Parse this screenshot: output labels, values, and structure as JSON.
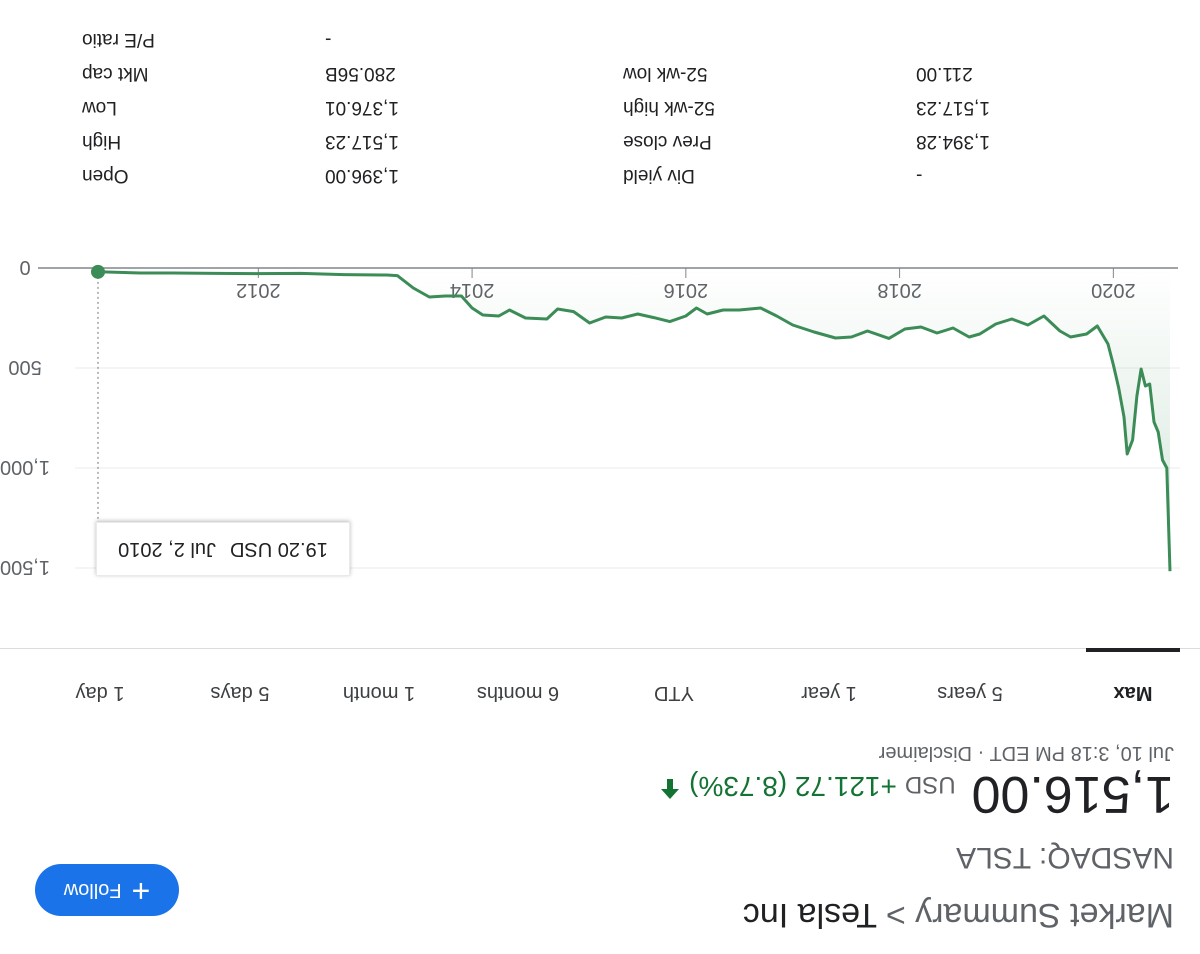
{
  "breadcrumb": {
    "parent": "Market Summary",
    "separator": ">",
    "current": "Tesla Inc"
  },
  "ticker": "NASDAQ: TSLA",
  "follow_button": {
    "icon": "plus-icon",
    "label": "Follow"
  },
  "quote": {
    "price": "1,516.00",
    "currency": "USD",
    "change": "+121.72 (8.73%)",
    "change_icon": "arrow-up-icon",
    "change_color": "#137333",
    "timestamp": "Jul 10, 3:18 PM EDT",
    "disclaimer": "Disclaimer"
  },
  "range_tabs": [
    {
      "label": "1 day"
    },
    {
      "label": "5 days"
    },
    {
      "label": "1 month"
    },
    {
      "label": "6 months"
    },
    {
      "label": "YTD"
    },
    {
      "label": "1 year"
    },
    {
      "label": "5 years"
    },
    {
      "label": "Max",
      "active": true
    }
  ],
  "tooltip": {
    "value": "19.20 USD",
    "date": "Jul 2, 2010"
  },
  "stats": {
    "left": [
      {
        "label": "Open",
        "value": "1,396.00"
      },
      {
        "label": "High",
        "value": "1,517.23"
      },
      {
        "label": "Low",
        "value": "1,376.01"
      },
      {
        "label": "Mkt cap",
        "value": "280.56B"
      },
      {
        "label": "P/E ratio",
        "value": "-"
      }
    ],
    "right": [
      {
        "label": "Div yield",
        "value": "-"
      },
      {
        "label": "Prev close",
        "value": "1,394.28"
      },
      {
        "label": "52-wk high",
        "value": "1,517.23"
      },
      {
        "label": "52-wk low",
        "value": "211.00"
      }
    ]
  },
  "chart_data": {
    "type": "area",
    "x_ticks": [
      "2012",
      "2014",
      "2016",
      "2018",
      "2020"
    ],
    "y_ticks": [
      "0",
      "500",
      "1,000",
      "1,500"
    ],
    "ylim": [
      0,
      1516
    ],
    "xlim": [
      2010.5,
      2020.53
    ],
    "line_color": "#3c8c57",
    "grid": true,
    "series": [
      {
        "x": [
          2010.5,
          2010.9,
          2011.2,
          2011.6,
          2012.0,
          2012.4,
          2012.8,
          2013.2,
          2013.3,
          2013.45,
          2013.6,
          2013.75,
          2013.9,
          2014.0,
          2014.1,
          2014.25,
          2014.35,
          2014.5,
          2014.7,
          2014.8,
          2014.95,
          2015.1,
          2015.25,
          2015.4,
          2015.55,
          2015.7,
          2015.85,
          2016.0,
          2016.1,
          2016.2,
          2016.35,
          2016.5,
          2016.7,
          2016.85,
          2017.0,
          2017.2,
          2017.4,
          2017.55,
          2017.7,
          2017.9,
          2018.05,
          2018.2,
          2018.35,
          2018.5,
          2018.65,
          2018.75,
          2018.9,
          2019.05,
          2019.2,
          2019.35,
          2019.5,
          2019.6,
          2019.75,
          2019.85,
          2019.95,
          2020.0,
          2020.05,
          2020.1,
          2020.13,
          2020.18,
          2020.22,
          2020.26,
          2020.3,
          2020.34,
          2020.38,
          2020.42,
          2020.46,
          2020.5,
          2020.53
        ],
        "y": [
          19.2,
          25,
          25,
          27,
          28,
          27,
          33,
          35,
          38,
          100,
          145,
          140,
          140,
          200,
          235,
          240,
          210,
          250,
          255,
          205,
          218,
          275,
          245,
          250,
          230,
          248,
          268,
          240,
          200,
          230,
          210,
          210,
          200,
          240,
          285,
          320,
          350,
          345,
          315,
          352,
          305,
          295,
          325,
          300,
          345,
          330,
          280,
          255,
          285,
          240,
          315,
          345,
          330,
          290,
          380,
          485,
          600,
          745,
          930,
          860,
          640,
          505,
          590,
          580,
          770,
          820,
          960,
          1000,
          1516
        ]
      }
    ]
  }
}
